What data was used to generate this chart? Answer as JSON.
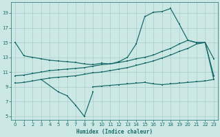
{
  "xlabel": "Humidex (Indice chaleur)",
  "bg_color": "#cce8e4",
  "grid_color": "#aacccc",
  "line_color": "#1a6b6b",
  "xlim": [
    -0.5,
    23.5
  ],
  "ylim": [
    4.5,
    20.5
  ],
  "xticks": [
    0,
    1,
    2,
    3,
    4,
    5,
    6,
    7,
    8,
    9,
    10,
    11,
    12,
    13,
    14,
    15,
    16,
    17,
    18,
    19,
    20,
    21,
    22,
    23
  ],
  "yticks": [
    5,
    7,
    9,
    11,
    13,
    15,
    17,
    19
  ],
  "line_top_x": [
    0,
    1,
    2,
    3,
    4,
    5,
    6,
    7,
    8,
    9,
    10,
    11,
    12,
    13,
    14,
    15,
    16,
    17,
    18,
    19,
    20,
    21,
    22,
    23
  ],
  "line_top_y": [
    15.0,
    13.2,
    13.0,
    12.8,
    12.6,
    12.5,
    12.4,
    12.3,
    12.1,
    12.0,
    12.2,
    12.1,
    12.4,
    13.0,
    14.8,
    18.5,
    19.1,
    19.2,
    19.6,
    17.5,
    15.3,
    15.0,
    15.0,
    12.8
  ],
  "line_mid1_x": [
    0,
    1,
    2,
    3,
    4,
    5,
    6,
    7,
    8,
    9,
    10,
    11,
    12,
    13,
    14,
    15,
    16,
    17,
    18,
    19,
    20,
    21,
    22,
    23
  ],
  "line_mid1_y": [
    10.5,
    10.6,
    10.8,
    11.0,
    11.2,
    11.3,
    11.4,
    11.5,
    11.6,
    11.8,
    12.0,
    12.1,
    12.3,
    12.5,
    12.8,
    13.0,
    13.3,
    13.8,
    14.2,
    14.8,
    15.3,
    15.0,
    15.0,
    10.5
  ],
  "line_mid2_x": [
    0,
    1,
    2,
    3,
    4,
    5,
    6,
    7,
    8,
    9,
    10,
    11,
    12,
    13,
    14,
    15,
    16,
    17,
    18,
    19,
    20,
    21,
    22,
    23
  ],
  "line_mid2_y": [
    9.5,
    9.6,
    9.8,
    10.0,
    10.2,
    10.3,
    10.4,
    10.5,
    10.7,
    10.9,
    11.0,
    11.2,
    11.4,
    11.6,
    11.9,
    12.2,
    12.5,
    12.9,
    13.3,
    13.8,
    14.2,
    14.8,
    15.0,
    10.0
  ],
  "line_bot_x": [
    0,
    1,
    2,
    3,
    4,
    5,
    6,
    7,
    8,
    9,
    10,
    11,
    12,
    13,
    14,
    15,
    16,
    17,
    18,
    19,
    20,
    21,
    22,
    23
  ],
  "line_bot_y": [
    null,
    null,
    null,
    null,
    null,
    null,
    null,
    null,
    null,
    9.0,
    9.1,
    9.2,
    9.3,
    9.4,
    9.5,
    9.6,
    9.4,
    9.3,
    9.4,
    9.5,
    9.6,
    9.7,
    9.8,
    10.0
  ],
  "line_zigzag_x": [
    3,
    5,
    6,
    7,
    8,
    9
  ],
  "line_zigzag_y": [
    10.0,
    8.3,
    7.8,
    6.5,
    5.0,
    8.3
  ]
}
